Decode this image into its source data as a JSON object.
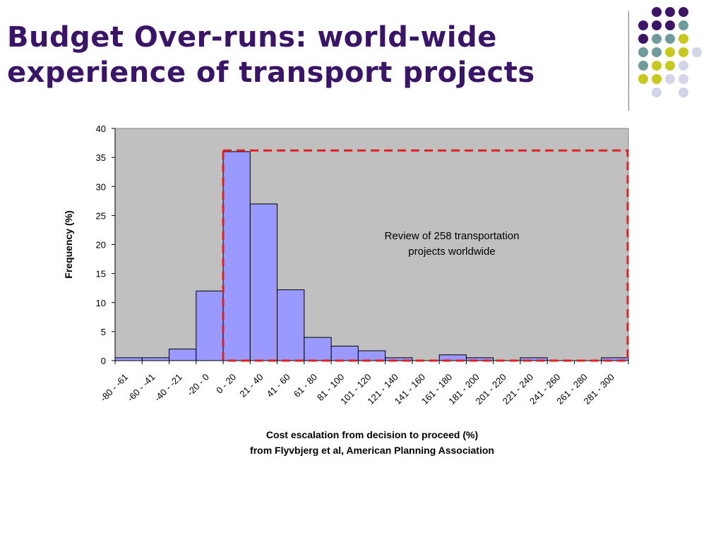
{
  "slide": {
    "title_line1": "Budget Over-runs: world-wide",
    "title_line2": "experience of transport projects"
  },
  "decoration": {
    "colors": {
      "purple": "#3d1466",
      "teal": "#6f9c9a",
      "yellow": "#c8c81e",
      "lavender": "#d4d4e8"
    },
    "grid": [
      [
        null,
        "purple",
        "purple",
        "purple",
        null
      ],
      [
        "purple",
        "purple",
        "purple",
        "teal",
        null
      ],
      [
        "purple",
        "teal",
        "teal",
        "yellow",
        null
      ],
      [
        "teal",
        "teal",
        "yellow",
        "yellow",
        "lavender"
      ],
      [
        "teal",
        "yellow",
        "yellow",
        "lavender",
        null
      ],
      [
        "yellow",
        "yellow",
        "lavender",
        "lavender",
        null
      ],
      [
        null,
        "lavender",
        null,
        "lavender",
        null
      ]
    ]
  },
  "chart_data": {
    "type": "bar",
    "categories": [
      "-80 - -61",
      "-60 - -41",
      "-40 - -21",
      "-20 - 0",
      "0 - 20",
      "21 - 40",
      "41 - 60",
      "61 - 80",
      "81 - 100",
      "101 - 120",
      "121 - 140",
      "141 - 160",
      "161 - 180",
      "181 - 200",
      "201 - 220",
      "221 - 240",
      "241 - 260",
      "261 - 280",
      "281 - 300"
    ],
    "values": [
      0.5,
      0.5,
      2,
      12,
      36,
      27,
      12.2,
      4,
      2.5,
      1.7,
      0.5,
      0,
      1,
      0.5,
      0,
      0.5,
      0,
      0,
      0.5
    ],
    "ylim": [
      0,
      40
    ],
    "yticks": [
      0,
      5,
      10,
      15,
      20,
      25,
      30,
      35,
      40
    ],
    "ylabel": "Frequency (%)",
    "xlabel_line1": "Cost escalation from decision to proceed (%)",
    "xlabel_line2": "from Flyvbjerg et al, American Planning Association",
    "annotation_line1": "Review of 258 transportation",
    "annotation_line2": "projects worldwide",
    "highlight": {
      "from_category": "0 - 20",
      "to_category": "281 - 300",
      "top_value": 36.2,
      "color": "#e02020"
    },
    "colors": {
      "bar": "#9999ff",
      "plot_bg": "#c0c0c0",
      "bar_edge": "#000000"
    },
    "grid": false,
    "legend": "none"
  }
}
